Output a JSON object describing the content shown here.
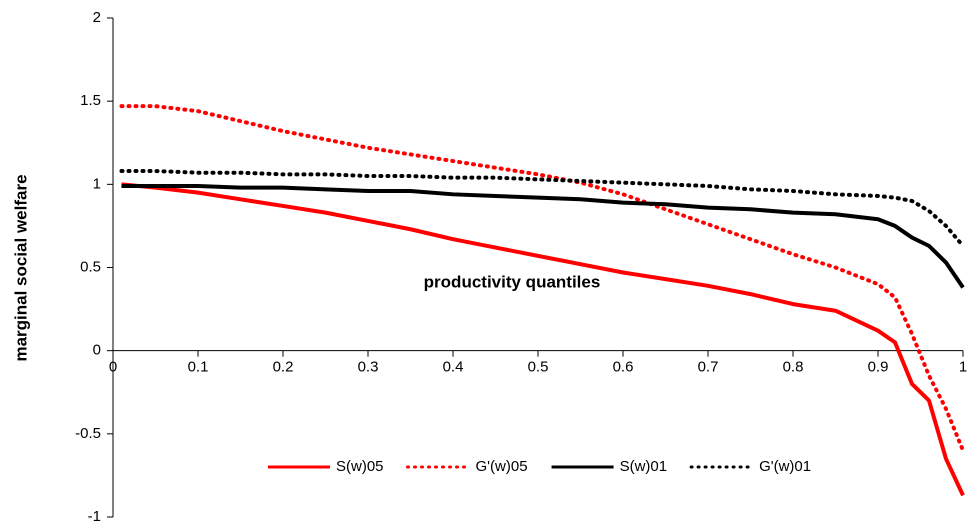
{
  "chart_data": {
    "type": "line",
    "xlabel": "productivity quantiles",
    "ylabel": "marginal social welfare",
    "x": [
      0.01,
      0.05,
      0.1,
      0.15,
      0.2,
      0.25,
      0.3,
      0.35,
      0.4,
      0.45,
      0.5,
      0.55,
      0.6,
      0.65,
      0.7,
      0.75,
      0.8,
      0.85,
      0.9,
      0.92,
      0.94,
      0.96,
      0.98,
      1
    ],
    "series": [
      {
        "name": "S(w)05",
        "color": "#ff0000",
        "dash": "solid",
        "values": [
          1.0,
          0.98,
          0.95,
          0.91,
          0.87,
          0.83,
          0.78,
          0.73,
          0.67,
          0.62,
          0.57,
          0.52,
          0.47,
          0.43,
          0.39,
          0.34,
          0.28,
          0.24,
          0.12,
          0.05,
          -0.2,
          -0.3,
          -0.65,
          -0.87
        ]
      },
      {
        "name": "G'(w)05",
        "color": "#ff0000",
        "dash": "dotted",
        "values": [
          1.47,
          1.47,
          1.44,
          1.38,
          1.32,
          1.27,
          1.22,
          1.18,
          1.14,
          1.1,
          1.06,
          1.01,
          0.94,
          0.85,
          0.76,
          0.67,
          0.58,
          0.5,
          0.4,
          0.32,
          0.1,
          -0.15,
          -0.35,
          -0.6
        ]
      },
      {
        "name": "S(w)01",
        "color": "#000000",
        "dash": "solid",
        "values": [
          0.99,
          0.99,
          0.99,
          0.98,
          0.98,
          0.97,
          0.96,
          0.96,
          0.94,
          0.93,
          0.92,
          0.91,
          0.89,
          0.88,
          0.86,
          0.85,
          0.83,
          0.82,
          0.79,
          0.75,
          0.68,
          0.63,
          0.53,
          0.38
        ]
      },
      {
        "name": "G'(w)01",
        "color": "#000000",
        "dash": "dotted",
        "values": [
          1.08,
          1.08,
          1.07,
          1.07,
          1.06,
          1.06,
          1.05,
          1.05,
          1.04,
          1.04,
          1.03,
          1.02,
          1.01,
          1.0,
          0.99,
          0.97,
          0.96,
          0.94,
          0.93,
          0.92,
          0.9,
          0.84,
          0.75,
          0.63
        ]
      }
    ],
    "xlim": [
      0,
      1
    ],
    "xticks": [
      0,
      0.1,
      0.2,
      0.3,
      0.4,
      0.5,
      0.6,
      0.7,
      0.8,
      0.9,
      1
    ],
    "ylim": [
      -1,
      2
    ],
    "yticks": [
      -1,
      -0.5,
      0,
      0.5,
      1,
      1.5,
      2
    ],
    "legend": "bottom"
  }
}
